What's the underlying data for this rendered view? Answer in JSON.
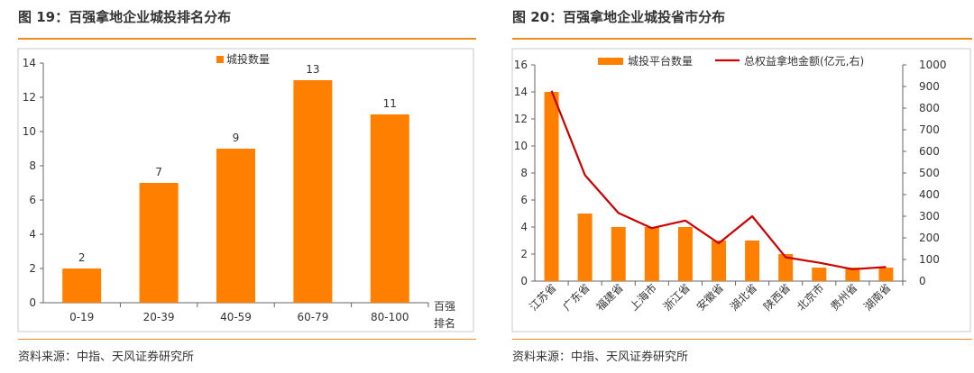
{
  "left": {
    "title": "图 19：百强拿地企业城投排名分布",
    "source": "资料来源：中指、天风证券研究所",
    "chart_data": {
      "type": "bar",
      "categories": [
        "0-19",
        "20-39",
        "40-59",
        "60-79",
        "80-100"
      ],
      "series": [
        {
          "name": "城投数量",
          "values": [
            2,
            7,
            9,
            13,
            11
          ]
        }
      ],
      "data_labels": [
        "2",
        "7",
        "9",
        "13",
        "11"
      ],
      "xlabel": [
        "百强",
        "排名"
      ],
      "ylim": [
        0,
        14
      ],
      "yticks": [
        "0",
        "2",
        "4",
        "6",
        "8",
        "10",
        "12",
        "14"
      ],
      "grid": false,
      "legend": "top-center",
      "color": "#ff8000"
    }
  },
  "right": {
    "title": "图 20：百强拿地企业城投省市分布",
    "source": "资料来源：中指、天风证券研究所",
    "chart_data": {
      "type": "bar",
      "categories": [
        "江苏省",
        "广东省",
        "福建省",
        "上海市",
        "浙江省",
        "安徽省",
        "湖北省",
        "陕西省",
        "北京市",
        "贵州省",
        "湖南省"
      ],
      "series": [
        {
          "name": "城投平台数量",
          "type": "bar",
          "axis": "left",
          "values": [
            14,
            5,
            4,
            4,
            4,
            3,
            3,
            2,
            1,
            1,
            1
          ],
          "color": "#ff8000"
        },
        {
          "name": "总权益拿地金额(亿元,右)",
          "type": "line",
          "axis": "right",
          "values": [
            880,
            490,
            315,
            245,
            280,
            175,
            300,
            110,
            85,
            55,
            65
          ],
          "color": "#cc0000"
        }
      ],
      "ylim_left": [
        0,
        16
      ],
      "yticks_left": [
        "0",
        "2",
        "4",
        "6",
        "8",
        "10",
        "12",
        "14",
        "16"
      ],
      "ylim_right": [
        0,
        1000
      ],
      "yticks_right": [
        "0",
        "100",
        "200",
        "300",
        "400",
        "500",
        "600",
        "700",
        "800",
        "900",
        "1000"
      ],
      "grid": false,
      "legend": "top"
    }
  }
}
